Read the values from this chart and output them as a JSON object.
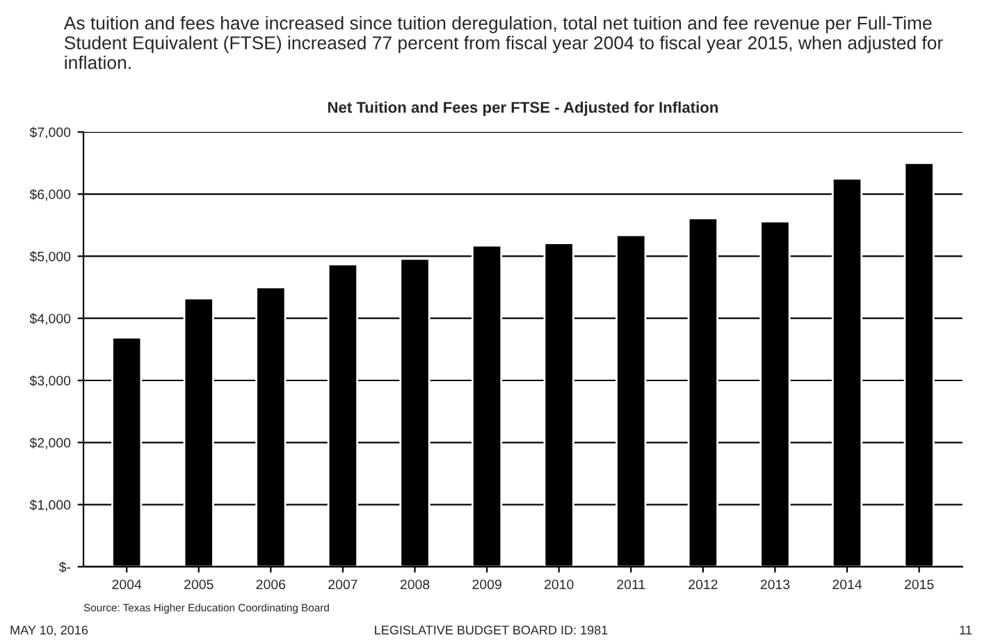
{
  "chart_data": {
    "type": "bar",
    "title": "Net Tuition and Fees per FTSE - Adjusted for Inflation",
    "categories": [
      "2004",
      "2005",
      "2006",
      "2007",
      "2008",
      "2009",
      "2010",
      "2011",
      "2012",
      "2013",
      "2014",
      "2015"
    ],
    "values": [
      3690,
      4320,
      4500,
      4870,
      4960,
      5170,
      5210,
      5340,
      5610,
      5560,
      6250,
      6500
    ],
    "color": "#000000",
    "ylim": [
      0,
      7000
    ],
    "yticks": [
      {
        "value": 0,
        "label": "$-"
      },
      {
        "value": 1000,
        "label": "$1,000"
      },
      {
        "value": 2000,
        "label": "$2,000"
      },
      {
        "value": 3000,
        "label": "$3,000"
      },
      {
        "value": 4000,
        "label": "$4,000"
      },
      {
        "value": 5000,
        "label": "$5,000"
      },
      {
        "value": 6000,
        "label": "$6,000"
      },
      {
        "value": 7000,
        "label": "$7,000"
      }
    ],
    "grid": "y",
    "annotations": [
      "As tuition and fees have increased since tuition deregulation, total net tuition and fee revenue per Full-Time Student Equivalent (FTSE) increased 77 percent from fiscal year 2004 to fiscal year 2015, when adjusted for inflation.",
      "Source: Texas Higher Education Coordinating Board",
      "MAY 10, 2016",
      "LEGISLATIVE BUDGET BOARD ID: 1981",
      "11"
    ]
  }
}
